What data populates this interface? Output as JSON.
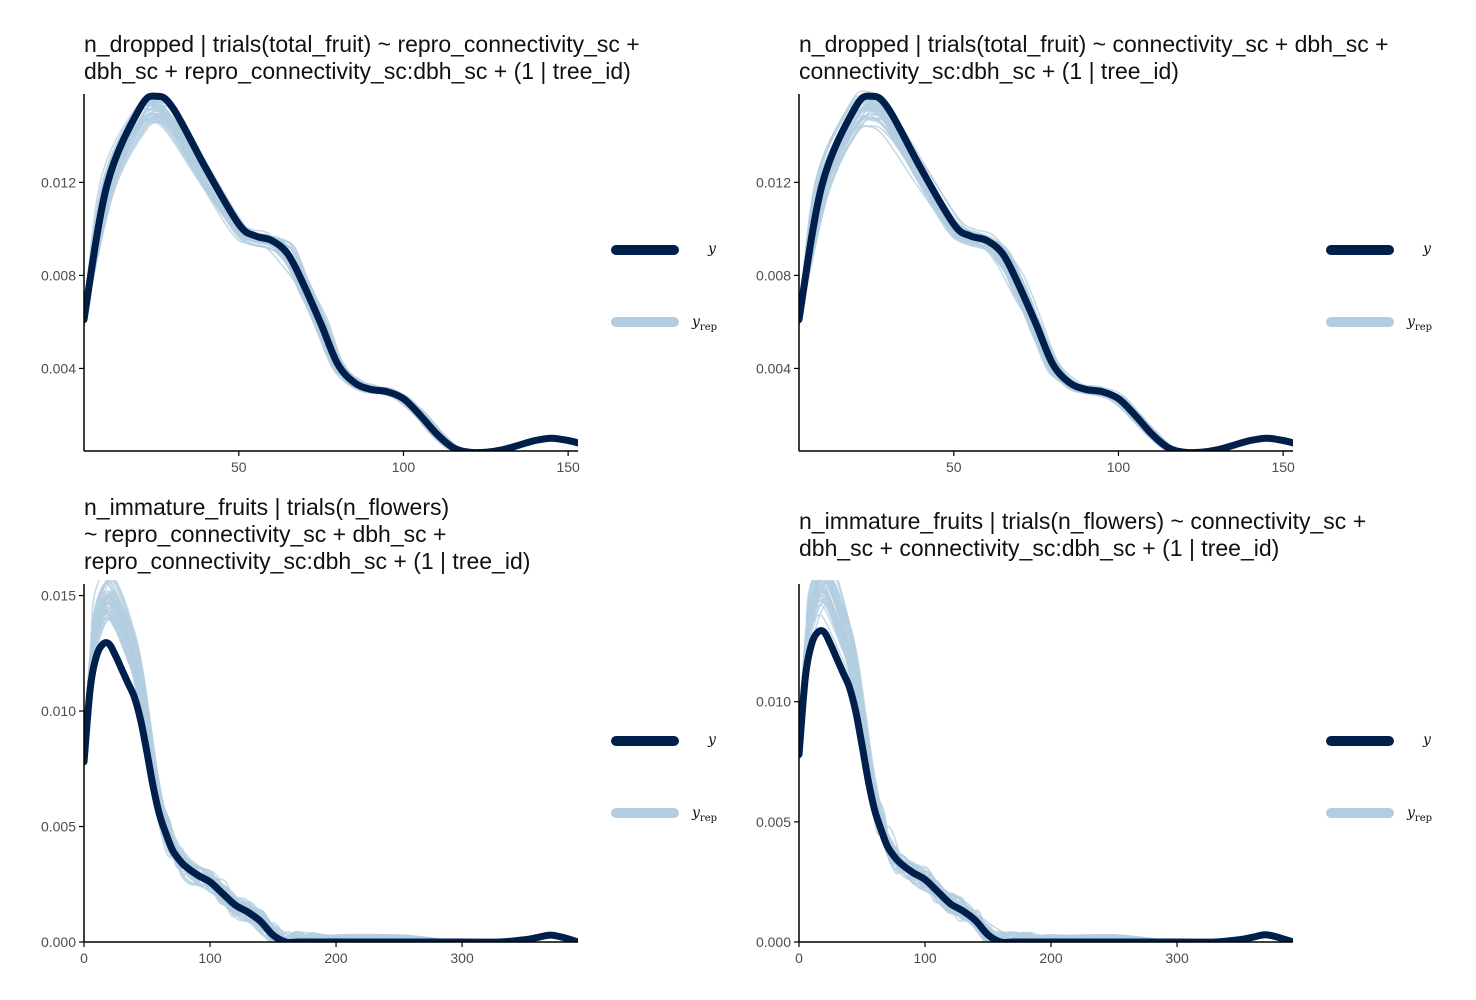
{
  "colors": {
    "y": "#011f4b",
    "yrep": "#b3cde0",
    "axis": "#000000"
  },
  "legend": {
    "y_label": "y",
    "yrep_label": "y",
    "yrep_sub": "rep"
  },
  "chart_data": [
    {
      "type": "line",
      "title_lines": [
        "n_dropped | trials(total_fruit) ~ repro_connectivity_sc +",
        "dbh_sc + repro_connectivity_sc:dbh_sc + (1 | tree_id)"
      ],
      "xlim": [
        3,
        153
      ],
      "ylim": [
        0.00045,
        0.0158
      ],
      "xticks": [
        50,
        100,
        150
      ],
      "yticks": [
        0.004,
        0.008,
        0.012
      ],
      "ytick_labels": [
        "0.004",
        "0.008",
        "0.012"
      ],
      "series": [
        {
          "name": "y",
          "x": [
            3,
            10,
            20,
            25,
            30,
            40,
            50,
            55,
            60,
            65,
            70,
            75,
            80,
            85,
            90,
            95,
            100,
            105,
            110,
            115,
            120,
            125,
            130,
            135,
            140,
            145,
            150,
            153
          ],
          "y": [
            0.0061,
            0.0119,
            0.0152,
            0.0157,
            0.0152,
            0.0126,
            0.0102,
            0.0097,
            0.0095,
            0.0089,
            0.0075,
            0.0059,
            0.0042,
            0.0034,
            0.0031,
            0.003,
            0.0027,
            0.002,
            0.0012,
            0.0006,
            0.0004,
            0.0004,
            0.0005,
            0.0007,
            0.0009,
            0.001,
            0.0009,
            0.0008
          ]
        }
      ]
    },
    {
      "type": "line",
      "title_lines": [
        "n_dropped | trials(total_fruit) ~ connectivity_sc + dbh_sc +",
        "connectivity_sc:dbh_sc + (1 | tree_id)"
      ],
      "xlim": [
        3,
        153
      ],
      "ylim": [
        0.00045,
        0.0158
      ],
      "xticks": [
        50,
        100,
        150
      ],
      "yticks": [
        0.004,
        0.008,
        0.012
      ],
      "ytick_labels": [
        "0.004",
        "0.008",
        "0.012"
      ],
      "series": [
        {
          "name": "y",
          "x": [
            3,
            10,
            20,
            25,
            30,
            40,
            50,
            55,
            60,
            65,
            70,
            75,
            80,
            85,
            90,
            95,
            100,
            105,
            110,
            115,
            120,
            125,
            130,
            135,
            140,
            145,
            150,
            153
          ],
          "y": [
            0.0061,
            0.0119,
            0.0152,
            0.0157,
            0.0152,
            0.0126,
            0.0102,
            0.0097,
            0.0095,
            0.0089,
            0.0075,
            0.0059,
            0.0042,
            0.0034,
            0.0031,
            0.003,
            0.0027,
            0.002,
            0.0012,
            0.0006,
            0.0004,
            0.0004,
            0.0005,
            0.0007,
            0.0009,
            0.001,
            0.0009,
            0.0008
          ]
        }
      ]
    },
    {
      "type": "line",
      "title_lines": [
        "n_immature_fruits | trials(n_flowers)",
        "~ repro_connectivity_sc + dbh_sc +",
        "repro_connectivity_sc:dbh_sc + (1 | tree_id)"
      ],
      "xlim": [
        0,
        392
      ],
      "ylim": [
        0,
        0.0155
      ],
      "xticks": [
        0,
        100,
        200,
        300
      ],
      "yticks": [
        0.0,
        0.005,
        0.01,
        0.015
      ],
      "ytick_labels": [
        "0.000",
        "0.005",
        "0.010",
        "0.015"
      ],
      "series": [
        {
          "name": "y",
          "x": [
            0,
            5,
            10,
            15,
            20,
            25,
            30,
            35,
            40,
            45,
            50,
            55,
            60,
            65,
            70,
            75,
            80,
            90,
            100,
            110,
            120,
            130,
            140,
            150,
            160,
            170,
            180,
            200,
            250,
            300,
            330,
            350,
            360,
            370,
            380,
            392
          ],
          "y": [
            0.0078,
            0.011,
            0.0124,
            0.0129,
            0.0129,
            0.0124,
            0.0118,
            0.0112,
            0.0106,
            0.0096,
            0.0082,
            0.0067,
            0.0055,
            0.0047,
            0.004,
            0.0036,
            0.0033,
            0.0029,
            0.0026,
            0.0021,
            0.0016,
            0.0013,
            0.0009,
            0.0003,
            0.0,
            0.0,
            0.0,
            0.0,
            0.0,
            0.0,
            0.0,
            0.0001,
            0.0002,
            0.0003,
            0.0002,
            0.0
          ]
        }
      ]
    },
    {
      "type": "line",
      "title_lines": [
        "n_immature_fruits | trials(n_flowers) ~ connectivity_sc +",
        "dbh_sc + connectivity_sc:dbh_sc + (1 | tree_id)"
      ],
      "xlim": [
        0,
        392
      ],
      "ylim": [
        0,
        0.0149
      ],
      "xticks": [
        0,
        100,
        200,
        300
      ],
      "yticks": [
        0.0,
        0.005,
        0.01
      ],
      "ytick_labels": [
        "0.000",
        "0.005",
        "0.010"
      ],
      "series": [
        {
          "name": "y",
          "x": [
            0,
            5,
            10,
            15,
            20,
            25,
            30,
            35,
            40,
            45,
            50,
            55,
            60,
            65,
            70,
            75,
            80,
            90,
            100,
            110,
            120,
            130,
            140,
            150,
            160,
            170,
            180,
            200,
            250,
            300,
            330,
            350,
            360,
            370,
            380,
            392
          ],
          "y": [
            0.0078,
            0.011,
            0.0124,
            0.0129,
            0.0129,
            0.0124,
            0.0118,
            0.0112,
            0.0106,
            0.0096,
            0.0082,
            0.0067,
            0.0055,
            0.0047,
            0.004,
            0.0036,
            0.0033,
            0.0029,
            0.0026,
            0.0021,
            0.0016,
            0.0013,
            0.0009,
            0.0003,
            0.0,
            0.0,
            0.0,
            0.0,
            0.0,
            0.0,
            0.0,
            0.0001,
            0.0002,
            0.0003,
            0.0002,
            0.0
          ]
        }
      ]
    }
  ]
}
